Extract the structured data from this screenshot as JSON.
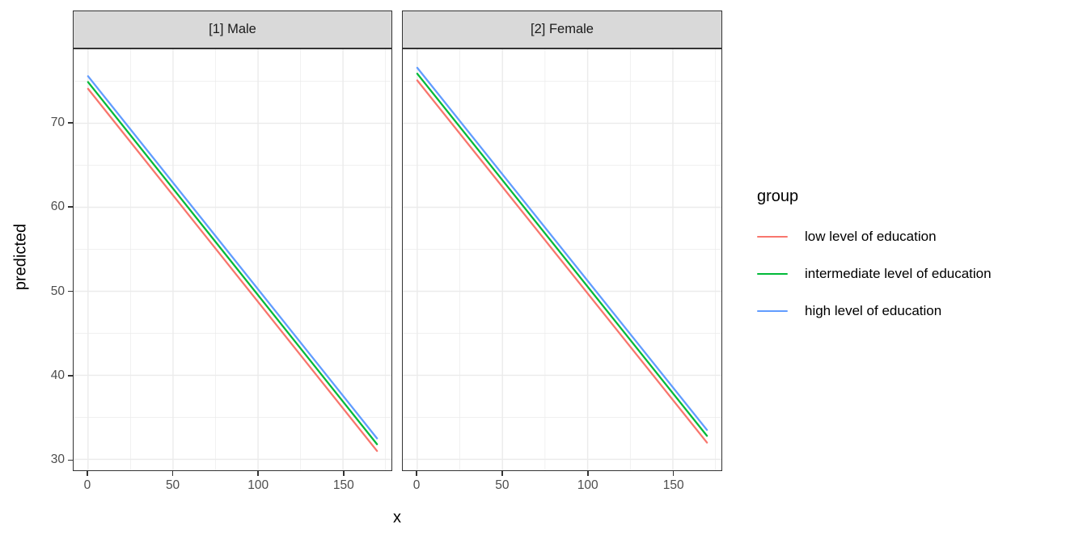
{
  "chart_data": {
    "type": "line",
    "title": "",
    "xlabel": "x",
    "ylabel": "predicted",
    "x_ticks": [
      0,
      50,
      100,
      150
    ],
    "y_ticks": [
      30,
      40,
      50,
      60,
      70
    ],
    "x_minor_gridlines": [
      25,
      75,
      125,
      175
    ],
    "y_minor_gridlines": [
      35,
      45,
      55,
      65,
      75
    ],
    "xlim": [
      -8.5,
      178.5
    ],
    "ylim": [
      28.7,
      78.8
    ],
    "grid": true,
    "legend": {
      "title": "group",
      "position": "right",
      "entries": [
        {
          "label": "low level of education",
          "color": "#F8766D"
        },
        {
          "label": "intermediate level of education",
          "color": "#00BA38"
        },
        {
          "label": "high level of education",
          "color": "#619CFF"
        }
      ]
    },
    "facets": [
      {
        "label": "[1] Male",
        "series": [
          {
            "name": "low level of education",
            "color": "#F8766D",
            "x": [
              0,
              170
            ],
            "y": [
              74.1,
              31.0
            ]
          },
          {
            "name": "intermediate level of education",
            "color": "#00BA38",
            "x": [
              0,
              170
            ],
            "y": [
              74.9,
              31.8
            ]
          },
          {
            "name": "high level of education",
            "color": "#619CFF",
            "x": [
              0,
              170
            ],
            "y": [
              75.6,
              32.5
            ]
          }
        ]
      },
      {
        "label": "[2] Female",
        "series": [
          {
            "name": "low level of education",
            "color": "#F8766D",
            "x": [
              0,
              170
            ],
            "y": [
              75.1,
              32.0
            ]
          },
          {
            "name": "intermediate level of education",
            "color": "#00BA38",
            "x": [
              0,
              170
            ],
            "y": [
              75.9,
              32.8
            ]
          },
          {
            "name": "high level of education",
            "color": "#619CFF",
            "x": [
              0,
              170
            ],
            "y": [
              76.6,
              33.5
            ]
          }
        ]
      }
    ],
    "style": {
      "background": "#FFFFFF",
      "strip_bg": "#D9D9D9",
      "strip_text": "#1A1A1A",
      "gridline": "#EBEBEB",
      "panel_border": "#333333",
      "tick_color": "#333333",
      "tick_label_color": "#4D4D4D"
    }
  }
}
